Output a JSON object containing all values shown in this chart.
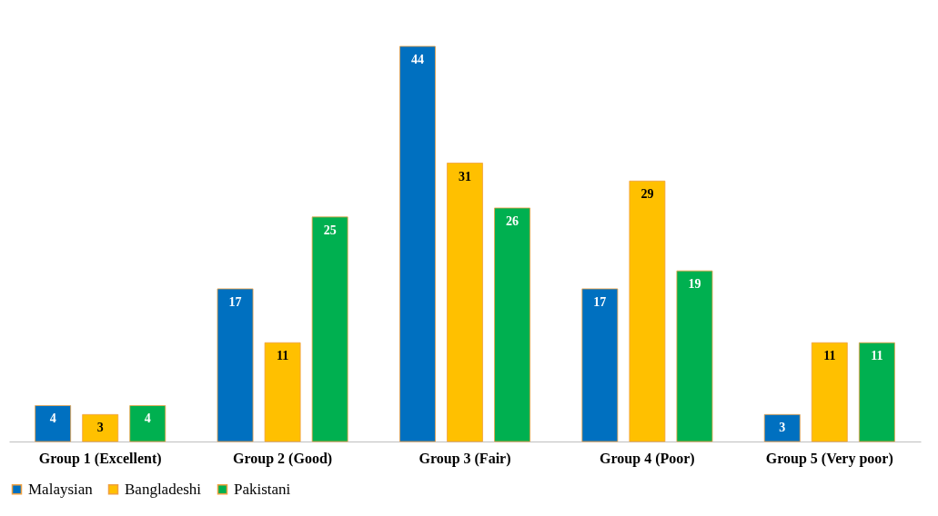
{
  "chart_data": {
    "type": "bar",
    "categories": [
      "Group 1 (Excellent)",
      "Group 2 (Good)",
      "Group 3 (Fair)",
      "Group 4 (Poor)",
      "Group 5 (Very poor)"
    ],
    "series": [
      {
        "name": "Malaysian",
        "color": "#0070c0",
        "values": [
          4,
          17,
          44,
          17,
          3
        ]
      },
      {
        "name": "Bangladeshi",
        "color": "#ffc000",
        "values": [
          3,
          11,
          31,
          29,
          11
        ]
      },
      {
        "name": "Pakistani",
        "color": "#00b050",
        "values": [
          4,
          25,
          26,
          19,
          11
        ]
      }
    ],
    "data_labels": true,
    "legend": "bottom",
    "grid": false
  }
}
